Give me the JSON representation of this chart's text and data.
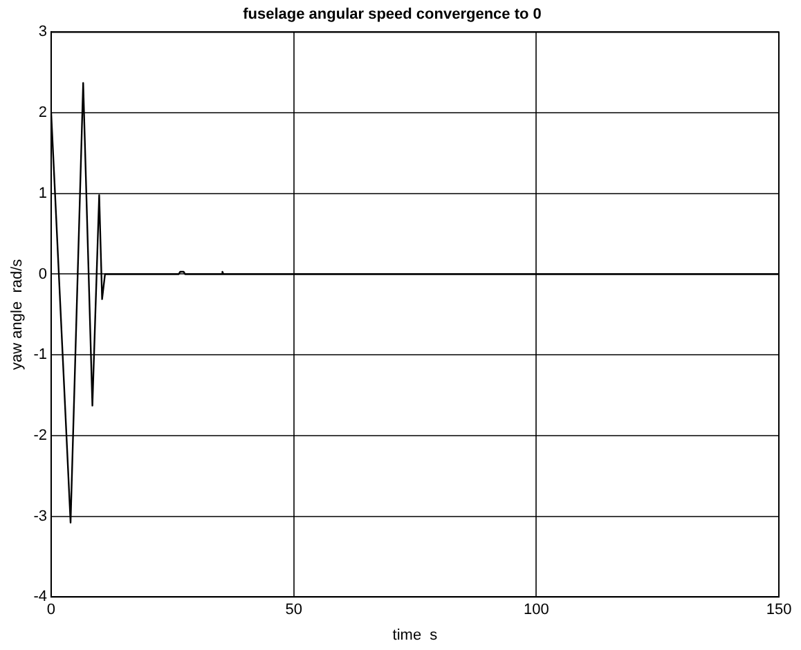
{
  "chart_data": {
    "type": "line",
    "title": "fuselage angular speed convergence to 0",
    "xlabel": "time  s",
    "ylabel": "yaw angle  rad/s",
    "x": [
      0,
      0.8,
      4.0,
      6.6,
      8.5,
      9.9,
      10.5,
      11.1,
      26.3,
      26.6,
      27.3,
      27.6,
      35.1,
      35.3,
      35.5,
      150
    ],
    "series": [
      {
        "color": "#000000",
        "values": [
          2.0,
          1.0,
          -3.08,
          2.37,
          -1.63,
          0.98,
          -0.31,
          0,
          0,
          0.03,
          0.03,
          0,
          0,
          0.03,
          0,
          0
        ]
      }
    ],
    "xlim": [
      0,
      150
    ],
    "xticks": [
      0,
      50,
      100,
      150
    ],
    "ylim": [
      -4,
      3
    ],
    "yticks": [
      -4,
      -3,
      -2,
      -1,
      0,
      1,
      2,
      3
    ],
    "grid": true,
    "line_style": "solid",
    "marker": "none"
  }
}
